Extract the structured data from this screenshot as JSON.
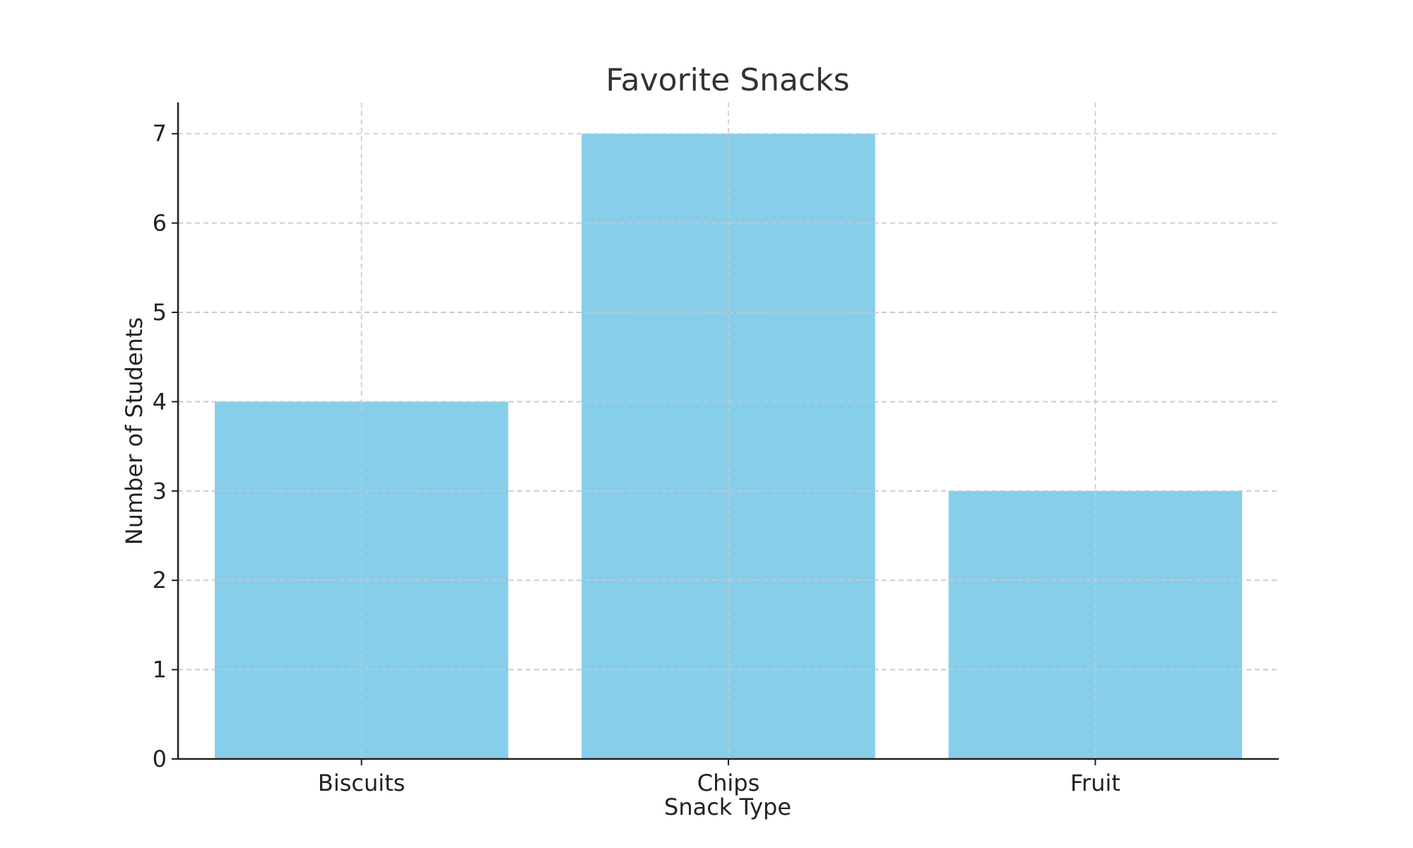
{
  "chart_data": {
    "type": "bar",
    "title": "Favorite Snacks",
    "xlabel": "Snack Type",
    "ylabel": "Number of Students",
    "categories": [
      "Biscuits",
      "Chips",
      "Fruit"
    ],
    "values": [
      4,
      7,
      3
    ],
    "ylim": [
      0,
      7.35
    ],
    "yticks": [
      0,
      1,
      2,
      3,
      4,
      5,
      6,
      7
    ],
    "bar_color": "#87CEEB",
    "grid": true,
    "legend": "none"
  }
}
